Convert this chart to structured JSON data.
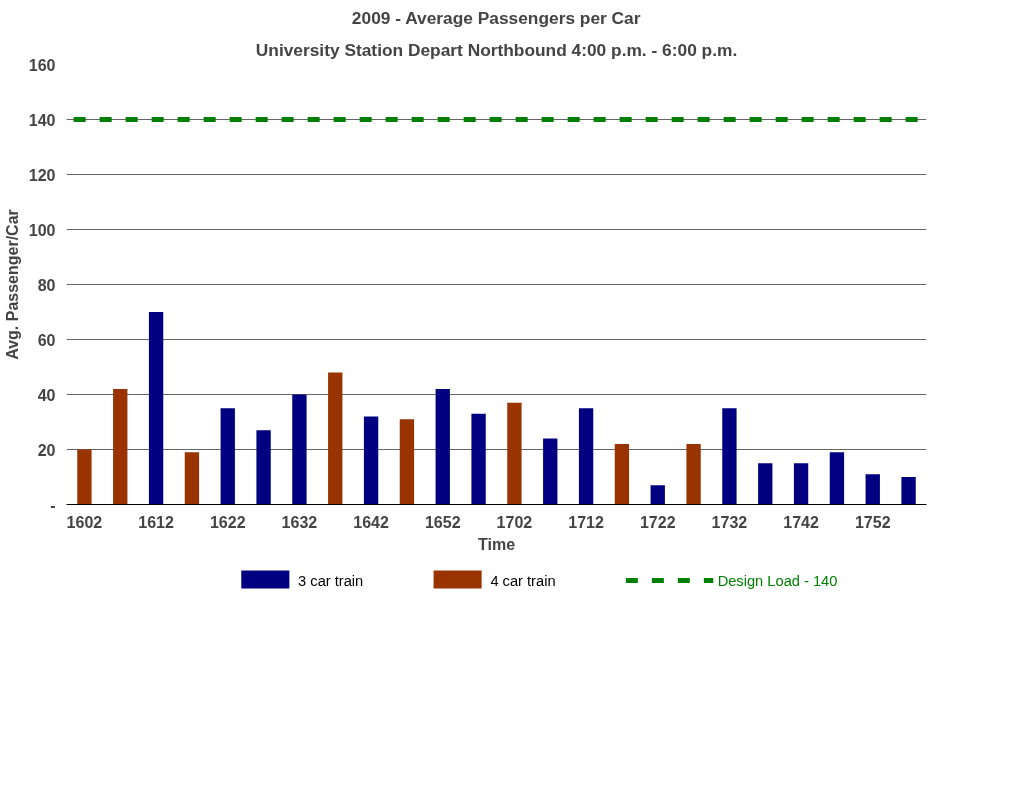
{
  "chart_data": {
    "type": "bar",
    "title": "2009 - Average Passengers per Car",
    "subtitle": "University Station Depart Northbound 4:00 p.m. - 6:00 p.m.",
    "xlabel": "Time",
    "ylabel": "Avg. Passenger/Car",
    "categories": [
      "1602",
      null,
      "1612",
      null,
      "1622",
      null,
      "1632",
      null,
      "1642",
      null,
      "1652",
      null,
      "1702",
      null,
      "1712",
      null,
      "1722",
      null,
      "1732",
      null,
      "1742",
      null,
      "1752",
      null
    ],
    "series": [
      {
        "name": "3 car train",
        "color": "#000080",
        "values": [
          null,
          null,
          70,
          null,
          35,
          27,
          40,
          null,
          32,
          null,
          42,
          33,
          null,
          24,
          35,
          null,
          7,
          null,
          35,
          15,
          15,
          19,
          11,
          10
        ]
      },
      {
        "name": "4 car train",
        "color": "#993300",
        "values": [
          20,
          42,
          null,
          19,
          null,
          null,
          null,
          48,
          null,
          31,
          null,
          null,
          37,
          null,
          null,
          22,
          null,
          22,
          null,
          null,
          null,
          null,
          null,
          null
        ]
      }
    ],
    "ylim": [
      0,
      160
    ],
    "yticks": [
      {
        "value": 0,
        "label": "-"
      },
      20,
      40,
      60,
      80,
      100,
      120,
      140,
      160
    ],
    "ref_lines": [
      {
        "axis": "y",
        "value": 140,
        "label": "Design Load - 140",
        "color": "#008000",
        "line_style": "dashed"
      }
    ],
    "grid": "y",
    "legend": "bottom"
  }
}
